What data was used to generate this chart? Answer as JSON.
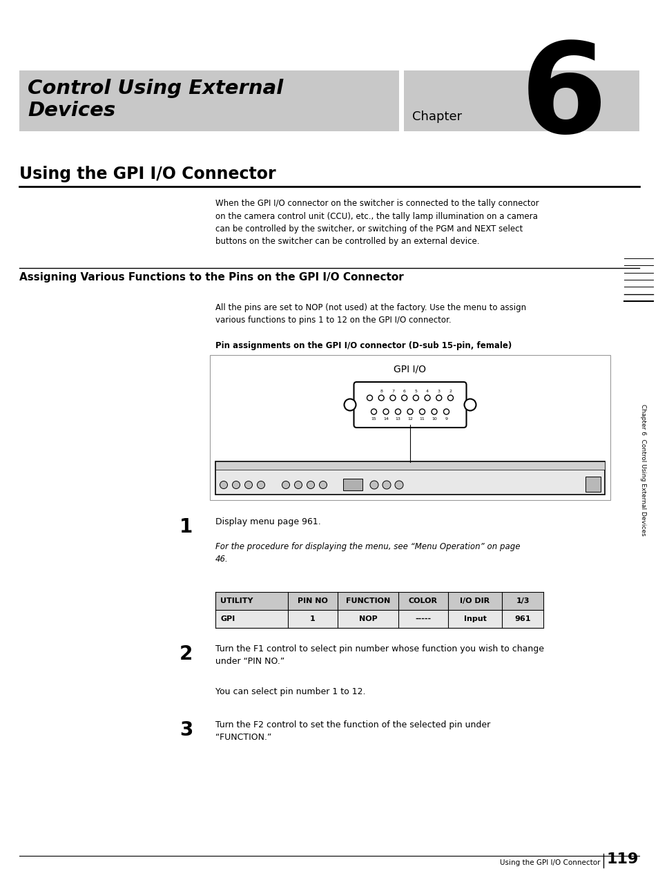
{
  "bg_color": "#ffffff",
  "page_width": 9.54,
  "page_height": 12.74,
  "header_bg_color": "#c8c8c8",
  "header_title": "Control Using External\nDevices",
  "header_chapter_word": "Chapter",
  "header_chapter_num": "6",
  "section1_title": "Using the GPI I/O Connector",
  "section1_text": "When the GPI I/O connector on the switcher is connected to the tally connector\non the camera control unit (CCU), etc., the tally lamp illumination on a camera\ncan be controlled by the switcher, or switching of the PGM and NEXT select\nbuttons on the switcher can be controlled by an external device.",
  "section2_title": "Assigning Various Functions to the Pins on the GPI I/O Connector",
  "section2_text1": "All the pins are set to NOP (not used) at the factory. Use the menu to assign\nvarious functions to pins 1 to 12 on the GPI I/O connector.",
  "section2_caption": "Pin assignments on the GPI I/O connector (D-sub 15-pin, female)",
  "connector_label": "GPI I/O",
  "step1_num": "1",
  "step1_text": "Display menu page 961.",
  "step1_italic": "For the procedure for displaying the menu, see “Menu Operation” on page\n46.",
  "table_headers": [
    "UTILITY",
    "PIN NO",
    "FUNCTION",
    "COLOR",
    "I/O DIR",
    "1/3"
  ],
  "table_row": [
    "GPI",
    "1",
    "NOP",
    "-----",
    "Input",
    "961"
  ],
  "table_header_bg": "#c8c8c8",
  "table_row_bg": "#e8e8e8",
  "step2_num": "2",
  "step2_text": "Turn the F1 control to select pin number whose function you wish to change\nunder “PIN NO.”",
  "step2_sub": "You can select pin number 1 to 12.",
  "step3_num": "3",
  "step3_text": "Turn the F2 control to set the function of the selected pin under\n“FUNCTION.”",
  "footer_text": "Using the GPI I/O Connector",
  "footer_page": "119",
  "sidebar_text": "Chapter 6  Control Using External Devices",
  "divider_color": "#000000",
  "text_color": "#000000"
}
